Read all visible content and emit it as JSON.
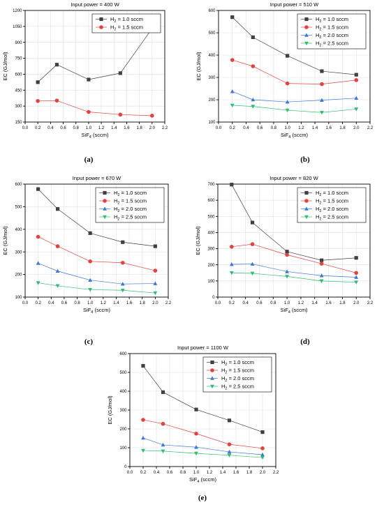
{
  "chart_data": [
    {
      "type": "line",
      "panel_label": "(a)",
      "title": "Input power = 400 W",
      "xlabel_main": "SiF",
      "xlabel_sub": "4",
      "xlabel_tail": " (sccm)",
      "ylabel": "EC (GJ/mol)",
      "xlim": [
        0.0,
        2.2
      ],
      "ylim": [
        150,
        1200
      ],
      "xticks": [
        0.0,
        0.2,
        0.4,
        0.6,
        0.8,
        1.0,
        1.2,
        1.4,
        1.6,
        1.8,
        2.0,
        2.2
      ],
      "yticks": [
        150,
        300,
        450,
        600,
        750,
        900,
        1050,
        1200
      ],
      "x": [
        0.2,
        0.5,
        1.0,
        1.5,
        2.0
      ],
      "series": [
        {
          "name": "H",
          "name_sub": "2",
          "name_tail": " = 1.0 sccm",
          "color": "#404040",
          "marker": "square",
          "values": [
            525,
            690,
            550,
            610,
            1030
          ]
        },
        {
          "name": "H",
          "name_sub": "2",
          "name_tail": " = 1.5 sccm",
          "color": "#e8413c",
          "marker": "circle",
          "values": [
            348,
            352,
            245,
            220,
            210
          ]
        }
      ]
    },
    {
      "type": "line",
      "panel_label": "(b)",
      "title": "Input power = 510 W",
      "xlabel_main": "SiF",
      "xlabel_sub": "4",
      "xlabel_tail": " (sccm)",
      "ylabel": "EC (GJ/mol)",
      "xlim": [
        0.0,
        2.2
      ],
      "ylim": [
        100,
        600
      ],
      "xticks": [
        0.0,
        0.2,
        0.4,
        0.6,
        0.8,
        1.0,
        1.2,
        1.4,
        1.6,
        1.8,
        2.0,
        2.2
      ],
      "yticks": [
        100,
        200,
        300,
        400,
        500,
        600
      ],
      "x": [
        0.2,
        0.5,
        1.0,
        1.5,
        2.0
      ],
      "series": [
        {
          "name": "H",
          "name_sub": "2",
          "name_tail": " = 1.0 sccm",
          "color": "#404040",
          "marker": "square",
          "values": [
            570,
            480,
            397,
            328,
            312
          ]
        },
        {
          "name": "H",
          "name_sub": "2",
          "name_tail": " = 1.5 sccm",
          "color": "#e8413c",
          "marker": "circle",
          "values": [
            378,
            350,
            273,
            270,
            288
          ]
        },
        {
          "name": "H",
          "name_sub": "2",
          "name_tail": " = 2.0 sccm",
          "color": "#3b78d8",
          "marker": "triangle-up",
          "values": [
            237,
            200,
            190,
            198,
            207
          ]
        },
        {
          "name": "H",
          "name_sub": "2",
          "name_tail": " = 2.5 sccm",
          "color": "#2fbf71",
          "marker": "triangle-down",
          "values": [
            175,
            170,
            153,
            143,
            158
          ]
        }
      ]
    },
    {
      "type": "line",
      "panel_label": "(c)",
      "title": "Input power = 670 W",
      "xlabel_main": "SiF",
      "xlabel_sub": "4",
      "xlabel_tail": " (sccm)",
      "ylabel": "EC (GJ/mol)",
      "xlim": [
        0.0,
        2.2
      ],
      "ylim": [
        100,
        600
      ],
      "xticks": [
        0.0,
        0.2,
        0.4,
        0.6,
        0.8,
        1.0,
        1.2,
        1.4,
        1.6,
        1.8,
        2.0,
        2.2
      ],
      "yticks": [
        100,
        200,
        300,
        400,
        500,
        600
      ],
      "x": [
        0.2,
        0.5,
        1.0,
        1.5,
        2.0
      ],
      "series": [
        {
          "name": "H",
          "name_sub": "2",
          "name_tail": " = 1.0 sccm",
          "color": "#404040",
          "marker": "square",
          "values": [
            578,
            490,
            383,
            343,
            325
          ]
        },
        {
          "name": "H",
          "name_sub": "2",
          "name_tail": " = 1.5 sccm",
          "color": "#e8413c",
          "marker": "circle",
          "values": [
            367,
            325,
            258,
            252,
            217
          ]
        },
        {
          "name": "H",
          "name_sub": "2",
          "name_tail": " = 2.0 sccm",
          "color": "#3b78d8",
          "marker": "triangle-up",
          "values": [
            250,
            215,
            175,
            158,
            160
          ]
        },
        {
          "name": "H",
          "name_sub": "2",
          "name_tail": " = 2.5 sccm",
          "color": "#2fbf71",
          "marker": "triangle-down",
          "values": [
            163,
            150,
            133,
            130,
            118
          ]
        }
      ]
    },
    {
      "type": "line",
      "panel_label": "(d)",
      "title": "Input power = 820 W",
      "xlabel_main": "SiF",
      "xlabel_sub": "4",
      "xlabel_tail": " (sccm)",
      "ylabel": "EC (GJ/mol)",
      "xlim": [
        0.0,
        2.2
      ],
      "ylim": [
        0,
        700
      ],
      "xticks": [
        0.0,
        0.2,
        0.4,
        0.6,
        0.8,
        1.0,
        1.2,
        1.4,
        1.6,
        1.8,
        2.0,
        2.2
      ],
      "yticks": [
        0,
        100,
        200,
        300,
        400,
        500,
        600,
        700
      ],
      "x": [
        0.2,
        0.5,
        1.0,
        1.5,
        2.0
      ],
      "series": [
        {
          "name": "H",
          "name_sub": "2",
          "name_tail": " = 1.0 sccm",
          "color": "#404040",
          "marker": "square",
          "values": [
            697,
            462,
            282,
            228,
            243
          ]
        },
        {
          "name": "H",
          "name_sub": "2",
          "name_tail": " = 1.5 sccm",
          "color": "#e8413c",
          "marker": "circle",
          "values": [
            312,
            328,
            262,
            207,
            150
          ]
        },
        {
          "name": "H",
          "name_sub": "2",
          "name_tail": " = 2.0 sccm",
          "color": "#3b78d8",
          "marker": "triangle-up",
          "values": [
            203,
            205,
            158,
            133,
            123
          ]
        },
        {
          "name": "H",
          "name_sub": "2",
          "name_tail": " = 2.5 sccm",
          "color": "#2fbf71",
          "marker": "triangle-down",
          "values": [
            150,
            147,
            128,
            100,
            92
          ]
        }
      ]
    },
    {
      "type": "line",
      "panel_label": "(e)",
      "title": "Input power = 1100 W",
      "xlabel_main": "SiF",
      "xlabel_sub": "4",
      "xlabel_tail": " (sccm)",
      "ylabel": "EC (GJ/mol)",
      "xlim": [
        0.0,
        2.2
      ],
      "ylim": [
        0,
        600
      ],
      "xticks": [
        0.0,
        0.2,
        0.4,
        0.6,
        0.8,
        1.0,
        1.2,
        1.4,
        1.6,
        1.8,
        2.0,
        2.2
      ],
      "yticks": [
        0,
        100,
        200,
        300,
        400,
        500,
        600
      ],
      "x": [
        0.2,
        0.5,
        1.0,
        1.5,
        2.0
      ],
      "series": [
        {
          "name": "H",
          "name_sub": "2",
          "name_tail": " = 1.0 sccm",
          "color": "#404040",
          "marker": "square",
          "values": [
            535,
            395,
            303,
            245,
            183
          ]
        },
        {
          "name": "H",
          "name_sub": "2",
          "name_tail": " = 1.5 sccm",
          "color": "#e8413c",
          "marker": "circle",
          "values": [
            248,
            227,
            175,
            118,
            97
          ]
        },
        {
          "name": "H",
          "name_sub": "2",
          "name_tail": " = 2.0 sccm",
          "color": "#3b78d8",
          "marker": "triangle-up",
          "values": [
            152,
            115,
            103,
            78,
            63
          ]
        },
        {
          "name": "H",
          "name_sub": "2",
          "name_tail": " = 2.5 sccm",
          "color": "#2fbf71",
          "marker": "triangle-down",
          "values": [
            85,
            82,
            70,
            60,
            48
          ]
        }
      ]
    }
  ]
}
